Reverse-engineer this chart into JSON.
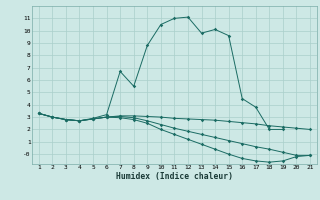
{
  "xlabel": "Humidex (Indice chaleur)",
  "background_color": "#cde8e5",
  "grid_color": "#aacfcb",
  "line_color": "#1a6b63",
  "x_ticks": [
    1,
    2,
    3,
    4,
    5,
    6,
    7,
    8,
    9,
    10,
    11,
    12,
    13,
    14,
    15,
    16,
    17,
    18,
    19,
    20,
    21
  ],
  "ylim": [
    -0.8,
    12.0
  ],
  "xlim": [
    0.5,
    21.5
  ],
  "yticks": [
    0,
    1,
    2,
    3,
    4,
    5,
    6,
    7,
    8,
    9,
    10,
    11
  ],
  "ytick_labels": [
    "-0",
    "1",
    "2",
    "3",
    "4",
    "5",
    "6",
    "7",
    "8",
    "9",
    "10",
    "11"
  ],
  "series": [
    {
      "x": [
        1,
        2,
        3,
        4,
        5,
        6,
        7,
        8,
        9,
        10,
        11,
        12,
        13,
        14,
        15,
        16,
        17,
        18,
        19
      ],
      "y": [
        3.3,
        3.0,
        2.8,
        2.7,
        2.9,
        3.2,
        6.7,
        5.5,
        8.8,
        10.5,
        11.0,
        11.1,
        9.8,
        10.1,
        9.6,
        4.5,
        3.8,
        2.0,
        2.0
      ]
    },
    {
      "x": [
        1,
        2,
        3,
        4,
        5,
        6,
        7,
        8,
        9,
        10,
        11,
        12,
        13,
        14,
        15,
        16,
        17,
        18,
        19,
        20,
        21
      ],
      "y": [
        3.3,
        3.0,
        2.8,
        2.7,
        2.85,
        3.0,
        3.1,
        3.1,
        3.05,
        3.0,
        2.9,
        2.85,
        2.8,
        2.75,
        2.65,
        2.55,
        2.45,
        2.3,
        2.2,
        2.1,
        2.0
      ]
    },
    {
      "x": [
        1,
        2,
        3,
        4,
        5,
        6,
        7,
        8,
        9,
        10,
        11,
        12,
        13,
        14,
        15,
        16,
        17,
        18,
        19,
        20,
        21
      ],
      "y": [
        3.3,
        3.0,
        2.8,
        2.7,
        2.85,
        3.0,
        3.05,
        2.95,
        2.7,
        2.4,
        2.1,
        1.85,
        1.6,
        1.35,
        1.1,
        0.85,
        0.6,
        0.4,
        0.15,
        -0.1,
        -0.1
      ]
    },
    {
      "x": [
        1,
        2,
        3,
        4,
        5,
        6,
        7,
        8,
        9,
        10,
        11,
        12,
        13,
        14,
        15,
        16,
        17,
        18,
        19,
        20,
        21
      ],
      "y": [
        3.3,
        3.0,
        2.8,
        2.7,
        2.85,
        3.0,
        2.95,
        2.8,
        2.5,
        2.0,
        1.6,
        1.2,
        0.8,
        0.4,
        0.0,
        -0.35,
        -0.55,
        -0.65,
        -0.55,
        -0.2,
        -0.1
      ]
    }
  ]
}
